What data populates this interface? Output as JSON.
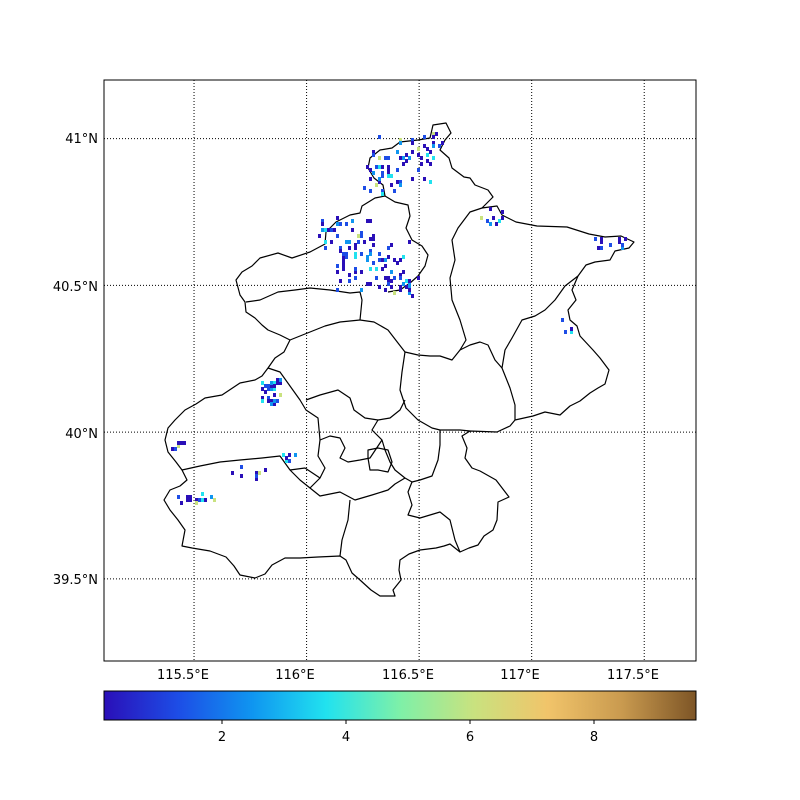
{
  "map": {
    "lon_ticks": [
      "115.5°E",
      "116°E",
      "116.5°E",
      "117°E",
      "117.5°E"
    ],
    "lat_ticks": [
      "41°N",
      "40.5°N",
      "40°N",
      "39.5°N"
    ],
    "lon_values": [
      115.5,
      116.0,
      116.5,
      117.0,
      117.5
    ],
    "lat_values": [
      41.0,
      40.5,
      40.0,
      39.5
    ],
    "extent": {
      "lon_min": 115.1,
      "lon_max": 117.73,
      "lat_min": 39.22,
      "lat_max": 41.2
    },
    "gridlines": "dotted",
    "region": "Beijing districts outline"
  },
  "colorbar": {
    "tick_labels": [
      "2",
      "4",
      "6",
      "8"
    ],
    "tick_values": [
      2,
      4,
      6,
      8
    ],
    "range": [
      0.05,
      9.6
    ],
    "colormap": "terrain-like",
    "colors": [
      "#2a0fb8",
      "#1d4de6",
      "#0f95f0",
      "#21e2ef",
      "#7ef0a8",
      "#c9e27f",
      "#f1c46a",
      "#c99a4f",
      "#7d5526"
    ]
  }
}
